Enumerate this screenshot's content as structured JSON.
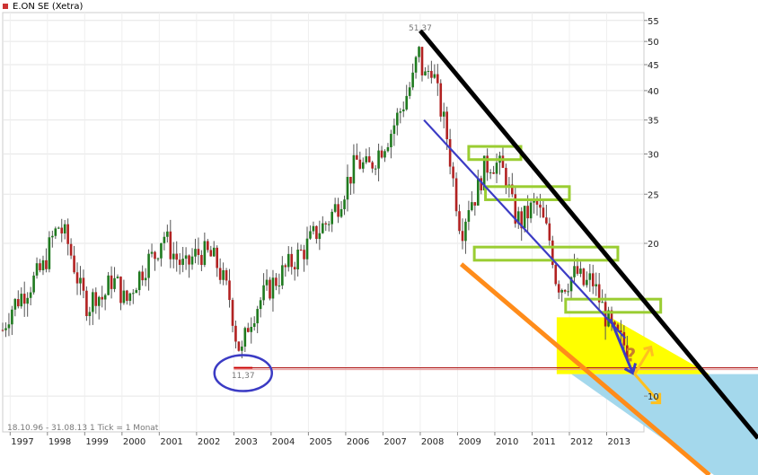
{
  "chart_data": {
    "type": "candlestick",
    "title": "E.ON SE (Xetra)",
    "period_label": "18.10.96 - 31.08.13",
    "interval_label": "1 Tick = 1 Monat",
    "y_scale": "log",
    "ylim": [
      8.5,
      57
    ],
    "xlim": [
      1996.8,
      2014.0
    ],
    "y_ticks": [
      {
        "value": 10,
        "label": "10"
      },
      {
        "value": 20,
        "label": "20"
      },
      {
        "value": 25,
        "label": "25"
      },
      {
        "value": 30,
        "label": "30"
      },
      {
        "value": 35,
        "label": "35"
      },
      {
        "value": 40,
        "label": "40"
      },
      {
        "value": 45,
        "label": "45"
      },
      {
        "value": 50,
        "label": "50"
      },
      {
        "value": 55,
        "label": "55"
      }
    ],
    "x_ticks": [
      {
        "value": 1997,
        "label": "1997"
      },
      {
        "value": 1998,
        "label": "1998"
      },
      {
        "value": 1999,
        "label": "1999"
      },
      {
        "value": 2000,
        "label": "2000"
      },
      {
        "value": 2001,
        "label": "2001"
      },
      {
        "value": 2002,
        "label": "2002"
      },
      {
        "value": 2003,
        "label": "2003"
      },
      {
        "value": 2004,
        "label": "2004"
      },
      {
        "value": 2005,
        "label": "2005"
      },
      {
        "value": 2006,
        "label": "2006"
      },
      {
        "value": 2007,
        "label": "2007"
      },
      {
        "value": 2008,
        "label": "2008"
      },
      {
        "value": 2009,
        "label": "2009"
      },
      {
        "value": 2010,
        "label": "2010"
      },
      {
        "value": 2011,
        "label": "2011"
      },
      {
        "value": 2012,
        "label": "2012"
      },
      {
        "value": 2013,
        "label": "2013"
      }
    ],
    "price_path": [
      [
        1996.8,
        13.5
      ],
      [
        1997.0,
        14.8
      ],
      [
        1997.3,
        15.8
      ],
      [
        1997.6,
        16.8
      ],
      [
        1997.9,
        18.0
      ],
      [
        1998.1,
        20.2
      ],
      [
        1998.3,
        21.6
      ],
      [
        1998.5,
        20.5
      ],
      [
        1998.7,
        18.3
      ],
      [
        1998.9,
        16.0
      ],
      [
        1999.1,
        15.0
      ],
      [
        1999.3,
        16.0
      ],
      [
        1999.5,
        15.5
      ],
      [
        1999.7,
        17.0
      ],
      [
        1999.9,
        16.5
      ],
      [
        2000.1,
        15.2
      ],
      [
        2000.3,
        16.5
      ],
      [
        2000.5,
        17.5
      ],
      [
        2000.7,
        18.5
      ],
      [
        2000.9,
        19.0
      ],
      [
        2001.1,
        21.0
      ],
      [
        2001.3,
        19.5
      ],
      [
        2001.5,
        18.5
      ],
      [
        2001.7,
        17.8
      ],
      [
        2001.9,
        18.8
      ],
      [
        2002.1,
        19.2
      ],
      [
        2002.3,
        19.0
      ],
      [
        2002.5,
        18.5
      ],
      [
        2002.7,
        17.0
      ],
      [
        2002.9,
        15.5
      ],
      [
        2003.05,
        13.2
      ],
      [
        2003.2,
        12.0
      ],
      [
        2003.4,
        14.0
      ],
      [
        2003.6,
        15.0
      ],
      [
        2003.8,
        15.8
      ],
      [
        2004.0,
        16.5
      ],
      [
        2004.3,
        17.5
      ],
      [
        2004.6,
        18.5
      ],
      [
        2004.9,
        19.5
      ],
      [
        2005.2,
        21.0
      ],
      [
        2005.5,
        22.0
      ],
      [
        2005.8,
        24.0
      ],
      [
        2006.0,
        26.0
      ],
      [
        2006.3,
        29.0
      ],
      [
        2006.6,
        28.0
      ],
      [
        2006.9,
        30.5
      ],
      [
        2007.2,
        33.0
      ],
      [
        2007.5,
        37.0
      ],
      [
        2007.8,
        42.0
      ],
      [
        2007.95,
        48.0
      ],
      [
        2008.1,
        42.0
      ],
      [
        2008.3,
        45.0
      ],
      [
        2008.5,
        38.0
      ],
      [
        2008.7,
        33.0
      ],
      [
        2008.9,
        26.0
      ],
      [
        2009.1,
        21.0
      ],
      [
        2009.3,
        24.0
      ],
      [
        2009.5,
        25.0
      ],
      [
        2009.7,
        28.0
      ],
      [
        2009.9,
        29.0
      ],
      [
        2010.1,
        28.5
      ],
      [
        2010.3,
        27.0
      ],
      [
        2010.5,
        23.0
      ],
      [
        2010.7,
        22.0
      ],
      [
        2010.9,
        23.0
      ],
      [
        2011.1,
        24.0
      ],
      [
        2011.3,
        22.0
      ],
      [
        2011.5,
        20.0
      ],
      [
        2011.65,
        16.8
      ],
      [
        2011.8,
        16.5
      ],
      [
        2012.0,
        17.0
      ],
      [
        2012.2,
        17.5
      ],
      [
        2012.4,
        16.5
      ],
      [
        2012.6,
        17.0
      ],
      [
        2012.8,
        15.5
      ],
      [
        2013.0,
        14.2
      ],
      [
        2013.2,
        13.2
      ],
      [
        2013.4,
        12.8
      ],
      [
        2013.6,
        12.3
      ]
    ],
    "annotations": [
      {
        "type": "label",
        "x": 2008.0,
        "y": 52.5,
        "text": "51,37"
      },
      {
        "type": "label",
        "x": 2003.25,
        "y": 10.85,
        "text": "11,37"
      },
      {
        "type": "label",
        "x": 2013.65,
        "y": 11.7,
        "text": "?"
      }
    ]
  }
}
